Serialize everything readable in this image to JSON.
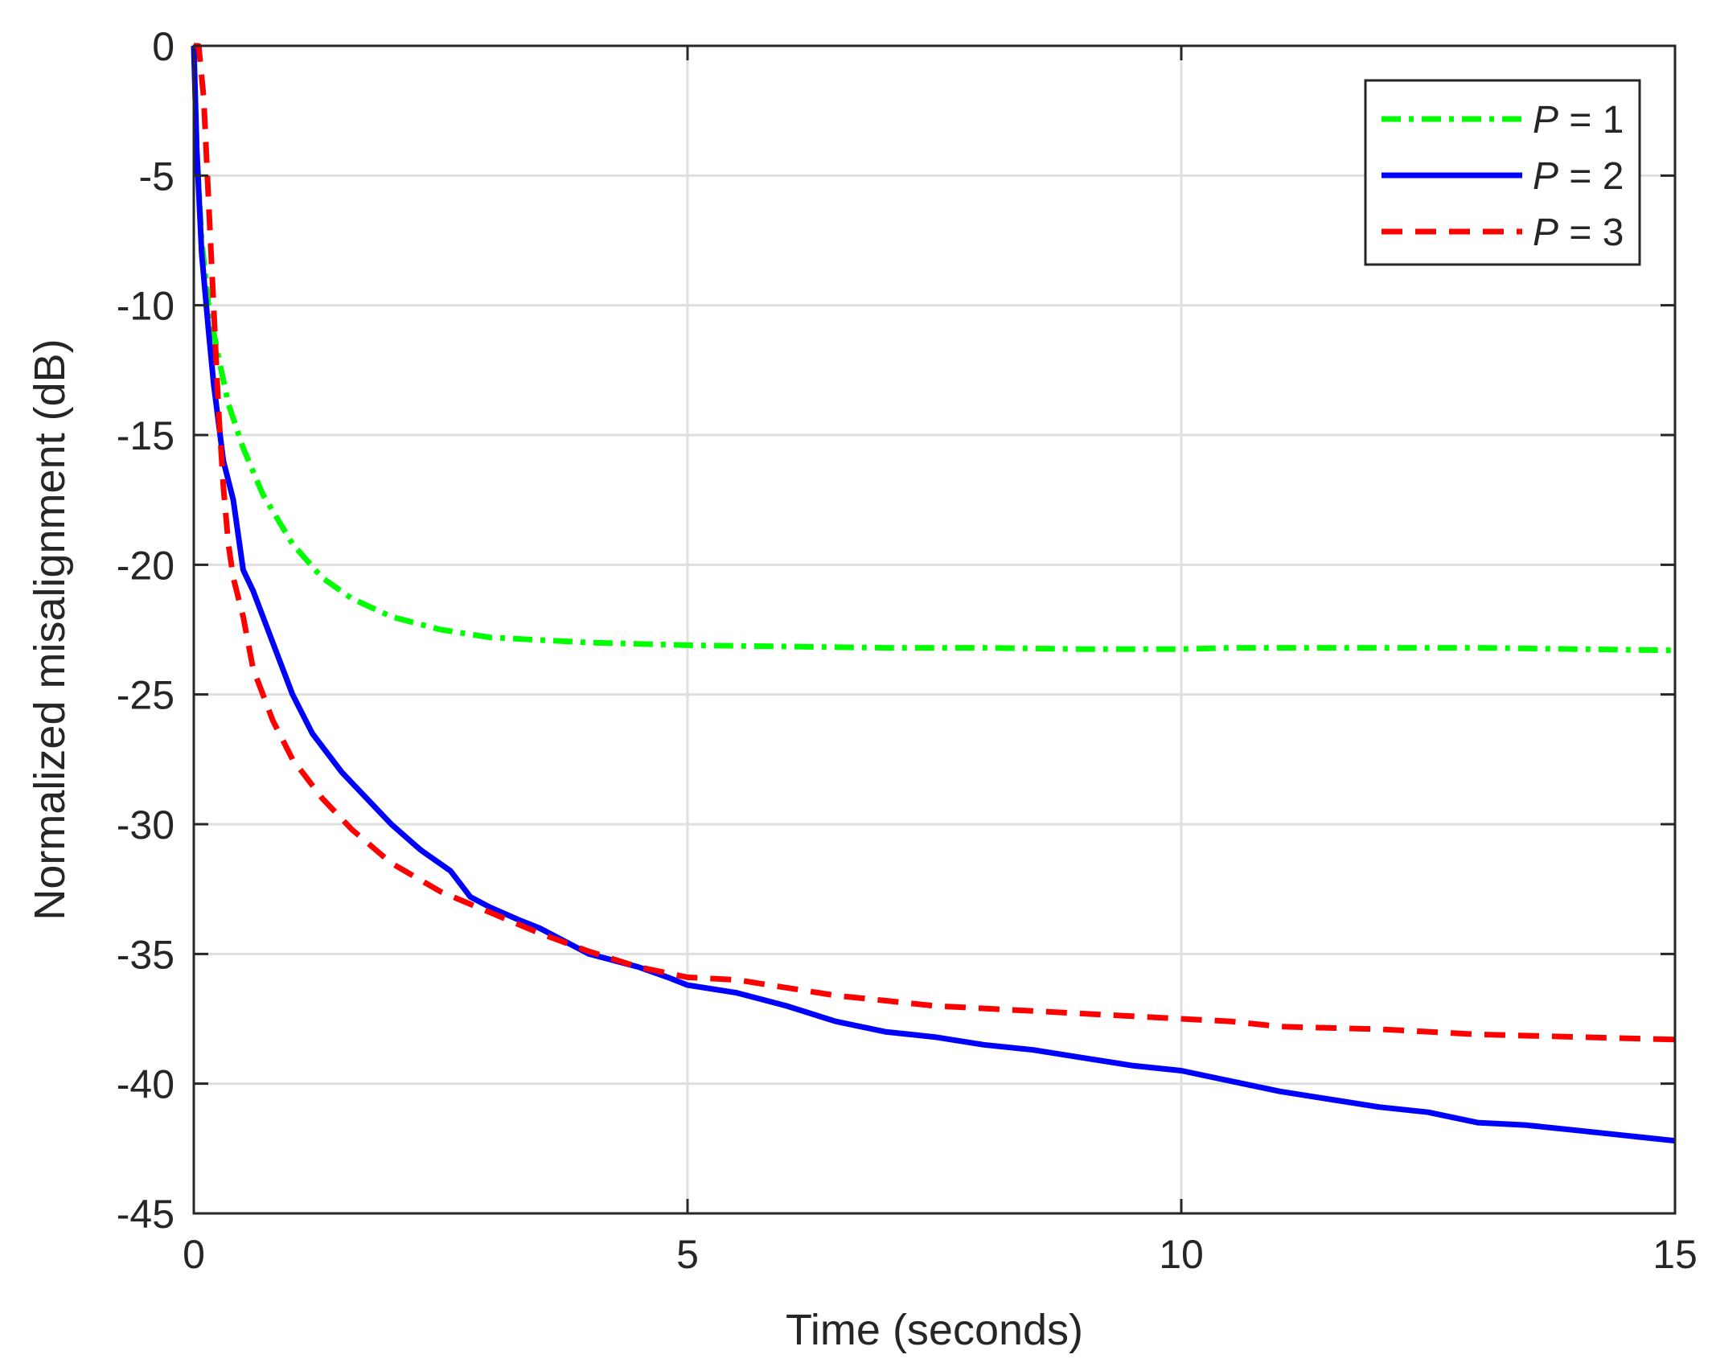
{
  "chart_data": {
    "type": "line",
    "title": "",
    "xlabel": "Time (seconds)",
    "ylabel": "Normalized misalignment (dB)",
    "xlim": [
      0,
      15
    ],
    "ylim": [
      -45,
      0
    ],
    "x_ticks": [
      0,
      5,
      10,
      15
    ],
    "y_ticks": [
      0,
      -5,
      -10,
      -15,
      -20,
      -25,
      -30,
      -35,
      -40,
      -45
    ],
    "grid": true,
    "legend_position": "top-right",
    "series": [
      {
        "name": "P = 1",
        "legend_var": "P",
        "legend_value": "= 1",
        "color": "#00ff00",
        "style": "dash-dot",
        "points": [
          [
            0.0,
            0.0
          ],
          [
            0.03,
            -4.0
          ],
          [
            0.08,
            -7.5
          ],
          [
            0.15,
            -10.0
          ],
          [
            0.25,
            -12.0
          ],
          [
            0.35,
            -13.8
          ],
          [
            0.5,
            -15.5
          ],
          [
            0.7,
            -17.3
          ],
          [
            1.0,
            -19.2
          ],
          [
            1.3,
            -20.5
          ],
          [
            1.6,
            -21.3
          ],
          [
            2.0,
            -22.0
          ],
          [
            2.5,
            -22.5
          ],
          [
            3.0,
            -22.8
          ],
          [
            3.5,
            -22.9
          ],
          [
            4.0,
            -23.0
          ],
          [
            5.0,
            -23.1
          ],
          [
            6.0,
            -23.15
          ],
          [
            7.0,
            -23.2
          ],
          [
            8.0,
            -23.2
          ],
          [
            9.0,
            -23.25
          ],
          [
            10.0,
            -23.25
          ],
          [
            10.5,
            -23.2
          ],
          [
            11.0,
            -23.2
          ],
          [
            12.0,
            -23.2
          ],
          [
            13.0,
            -23.2
          ],
          [
            14.0,
            -23.25
          ],
          [
            15.0,
            -23.3
          ]
        ]
      },
      {
        "name": "P = 2",
        "legend_var": "P",
        "legend_value": "= 2",
        "color": "#0000ff",
        "style": "solid",
        "points": [
          [
            0.0,
            0.0
          ],
          [
            0.03,
            -4.0
          ],
          [
            0.08,
            -8.0
          ],
          [
            0.15,
            -11.0
          ],
          [
            0.2,
            -13.0
          ],
          [
            0.3,
            -16.0
          ],
          [
            0.4,
            -17.5
          ],
          [
            0.5,
            -20.2
          ],
          [
            0.6,
            -21.0
          ],
          [
            0.8,
            -23.0
          ],
          [
            1.0,
            -25.0
          ],
          [
            1.2,
            -26.5
          ],
          [
            1.5,
            -28.0
          ],
          [
            1.8,
            -29.2
          ],
          [
            2.0,
            -30.0
          ],
          [
            2.3,
            -31.0
          ],
          [
            2.6,
            -31.8
          ],
          [
            2.8,
            -32.8
          ],
          [
            3.0,
            -33.2
          ],
          [
            3.3,
            -33.7
          ],
          [
            3.5,
            -34.0
          ],
          [
            3.8,
            -34.6
          ],
          [
            4.0,
            -35.0
          ],
          [
            4.3,
            -35.3
          ],
          [
            4.5,
            -35.5
          ],
          [
            4.8,
            -35.9
          ],
          [
            5.0,
            -36.2
          ],
          [
            5.5,
            -36.5
          ],
          [
            6.0,
            -37.0
          ],
          [
            6.5,
            -37.6
          ],
          [
            7.0,
            -38.0
          ],
          [
            7.5,
            -38.2
          ],
          [
            8.0,
            -38.5
          ],
          [
            8.5,
            -38.7
          ],
          [
            9.0,
            -39.0
          ],
          [
            9.5,
            -39.3
          ],
          [
            10.0,
            -39.5
          ],
          [
            10.5,
            -39.9
          ],
          [
            11.0,
            -40.3
          ],
          [
            11.5,
            -40.6
          ],
          [
            12.0,
            -40.9
          ],
          [
            12.5,
            -41.1
          ],
          [
            13.0,
            -41.5
          ],
          [
            13.5,
            -41.6
          ],
          [
            14.0,
            -41.8
          ],
          [
            14.5,
            -42.0
          ],
          [
            15.0,
            -42.2
          ]
        ]
      },
      {
        "name": "P = 3",
        "legend_var": "P",
        "legend_value": "= 3",
        "color": "#ff0000",
        "style": "dashed",
        "points": [
          [
            0.0,
            0.0
          ],
          [
            0.05,
            0.0
          ],
          [
            0.1,
            -2.0
          ],
          [
            0.15,
            -6.0
          ],
          [
            0.2,
            -10.0
          ],
          [
            0.25,
            -14.0
          ],
          [
            0.3,
            -17.0
          ],
          [
            0.35,
            -19.2
          ],
          [
            0.4,
            -20.5
          ],
          [
            0.5,
            -22.0
          ],
          [
            0.6,
            -24.0
          ],
          [
            0.8,
            -26.0
          ],
          [
            1.0,
            -27.5
          ],
          [
            1.3,
            -29.0
          ],
          [
            1.6,
            -30.2
          ],
          [
            2.0,
            -31.5
          ],
          [
            2.5,
            -32.6
          ],
          [
            3.0,
            -33.4
          ],
          [
            3.5,
            -34.2
          ],
          [
            4.0,
            -34.9
          ],
          [
            4.5,
            -35.5
          ],
          [
            5.0,
            -35.9
          ],
          [
            5.5,
            -36.0
          ],
          [
            6.0,
            -36.3
          ],
          [
            6.5,
            -36.6
          ],
          [
            7.0,
            -36.8
          ],
          [
            7.5,
            -37.0
          ],
          [
            8.0,
            -37.1
          ],
          [
            8.5,
            -37.2
          ],
          [
            9.0,
            -37.3
          ],
          [
            10.0,
            -37.5
          ],
          [
            10.5,
            -37.6
          ],
          [
            11.0,
            -37.8
          ],
          [
            12.0,
            -37.9
          ],
          [
            12.5,
            -38.0
          ],
          [
            13.0,
            -38.1
          ],
          [
            14.0,
            -38.2
          ],
          [
            14.5,
            -38.25
          ],
          [
            15.0,
            -38.3
          ]
        ]
      }
    ]
  }
}
